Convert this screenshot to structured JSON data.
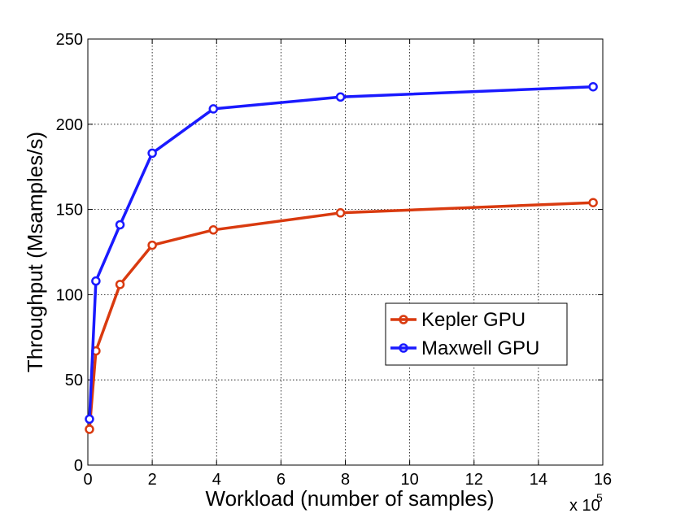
{
  "chart_data": {
    "type": "line",
    "xlabel": "Workload (number of samples)",
    "ylabel": "Throughput (Msamples/s)",
    "x_multiplier_base": "x 10",
    "x_multiplier_exp": "5",
    "xlim": [
      0,
      16
    ],
    "ylim": [
      0,
      250
    ],
    "xticks": [
      0,
      2,
      4,
      6,
      8,
      10,
      12,
      14,
      16
    ],
    "yticks": [
      0,
      50,
      100,
      150,
      200,
      250
    ],
    "xtick_labels": [
      "0",
      "2",
      "4",
      "6",
      "8",
      "10",
      "12",
      "14",
      "16"
    ],
    "ytick_labels": [
      "0",
      "50",
      "100",
      "150",
      "200",
      "250"
    ],
    "grid": true,
    "legend_position": "right-middle",
    "series": [
      {
        "name": "Kepler GPU",
        "color": "#d93a0f",
        "x": [
          0.05,
          0.25,
          1.0,
          2.0,
          3.9,
          7.85,
          15.7
        ],
        "y": [
          21,
          67,
          106,
          129,
          138,
          148,
          154
        ]
      },
      {
        "name": "Maxwell GPU",
        "color": "#1a1aff",
        "x": [
          0.05,
          0.25,
          1.0,
          2.0,
          3.9,
          7.85,
          15.7
        ],
        "y": [
          27,
          108,
          141,
          183,
          209,
          216,
          222
        ]
      }
    ]
  }
}
